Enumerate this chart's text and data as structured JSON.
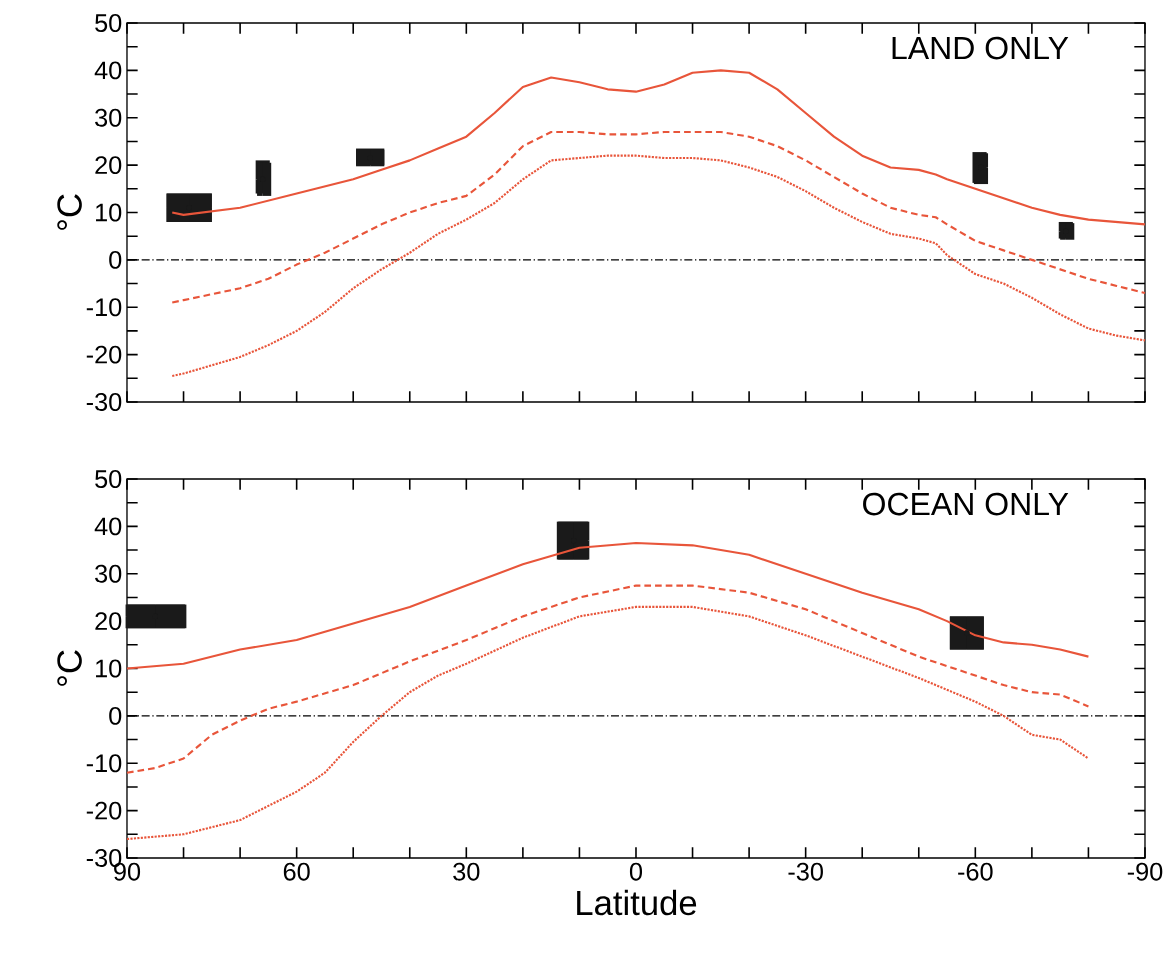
{
  "chart_data": [
    {
      "type": "line",
      "title": "LAND ONLY",
      "ylabel": "°C",
      "tick_labels": "y",
      "xlim": [
        90,
        -90
      ],
      "ylim": [
        -30,
        50
      ],
      "xticks": [
        90,
        {
          "value": 80,
          "label": null
        },
        {
          "value": 70,
          "label": null
        },
        60,
        {
          "value": 50,
          "label": null
        },
        {
          "value": 40,
          "label": null
        },
        30,
        {
          "value": 20,
          "label": null
        },
        {
          "value": 10,
          "label": null
        },
        0,
        {
          "value": -10,
          "label": null
        },
        {
          "value": -20,
          "label": null
        },
        -30,
        {
          "value": -40,
          "label": null
        },
        {
          "value": -50,
          "label": null
        },
        -60,
        {
          "value": -70,
          "label": null
        },
        {
          "value": -80,
          "label": null
        },
        -90
      ],
      "yticks": [
        -30,
        {
          "value": -25,
          "label": null
        },
        -20,
        {
          "value": -15,
          "label": null
        },
        -10,
        {
          "value": -5,
          "label": null
        },
        0,
        {
          "value": 5,
          "label": null
        },
        10,
        {
          "value": 15,
          "label": null
        },
        20,
        {
          "value": 25,
          "label": null
        },
        30,
        {
          "value": 35,
          "label": null
        },
        40,
        {
          "value": 45,
          "label": null
        },
        50
      ],
      "ref_lines": [
        {
          "axis": "y",
          "value": 0,
          "color": "#000000",
          "line_style": "dashed"
        }
      ],
      "series": [
        {
          "type": "line",
          "color": "#e8553a",
          "line_style": "solid",
          "x": [
            82,
            80,
            70,
            60,
            50,
            45,
            40,
            35,
            30,
            25,
            20,
            15,
            10,
            5,
            0,
            -5,
            -10,
            -15,
            -20,
            -25,
            -30,
            -35,
            -40,
            -45,
            -50,
            -53,
            -55,
            -60,
            -65,
            -70,
            -75,
            -80,
            -85,
            -90
          ],
          "values": [
            10,
            9.5,
            11,
            14,
            17,
            19,
            21,
            23.5,
            26,
            31,
            36.5,
            38.5,
            37.5,
            36,
            35.5,
            37,
            39.5,
            40,
            39.5,
            36,
            31,
            26,
            22,
            19.5,
            19,
            18,
            17,
            15,
            13,
            11,
            9.5,
            8.5,
            8,
            7.5
          ]
        },
        {
          "type": "line",
          "color": "#e8553a",
          "line_style": "dashed",
          "x": [
            82,
            80,
            70,
            65,
            60,
            55,
            50,
            45,
            40,
            35,
            30,
            25,
            20,
            15,
            10,
            5,
            0,
            -5,
            -10,
            -15,
            -20,
            -25,
            -30,
            -35,
            -40,
            -45,
            -50,
            -53,
            -55,
            -60,
            -65,
            -70,
            -75,
            -80,
            -85,
            -90
          ],
          "values": [
            -9,
            -8.5,
            -6,
            -4,
            -1,
            1.5,
            4.5,
            7.5,
            10,
            12,
            13.5,
            18,
            24,
            27,
            27,
            26.5,
            26.5,
            27,
            27,
            27,
            26,
            24,
            21,
            17.5,
            14,
            11,
            9.5,
            9,
            7.5,
            4,
            2,
            0,
            -2,
            -4,
            -5.5,
            -7
          ]
        },
        {
          "type": "line",
          "color": "#e8553a",
          "line_style": "dotted",
          "x": [
            82,
            80,
            70,
            65,
            60,
            55,
            50,
            45,
            40,
            35,
            30,
            25,
            20,
            15,
            10,
            5,
            0,
            -5,
            -10,
            -15,
            -20,
            -25,
            -30,
            -35,
            -40,
            -45,
            -50,
            -53,
            -55,
            -60,
            -65,
            -70,
            -75,
            -80,
            -85,
            -90
          ],
          "values": [
            -24.5,
            -24,
            -20.5,
            -18,
            -15,
            -11,
            -6,
            -2,
            1.5,
            5.5,
            8.5,
            12,
            17,
            21,
            21.5,
            22,
            22,
            21.5,
            21.5,
            21,
            19.5,
            17.5,
            14.5,
            11,
            8,
            5.5,
            4.5,
            3.5,
            1,
            -3,
            -5,
            -8,
            -11.5,
            -14.5,
            -16,
            -17
          ]
        },
        {
          "type": "scatter",
          "color": "#1a1a1a",
          "marker": "square",
          "x": [
            79,
            66,
            47,
            -61,
            -76
          ],
          "values": [
            11,
            17,
            21.5,
            19.5,
            6
          ],
          "xerrors": [
            [
              75,
              83
            ],
            [
              64.5,
              67
            ],
            [
              44.5,
              49.5
            ],
            [
              -62,
              -59.5
            ],
            [
              -77.5,
              -75
            ]
          ],
          "errors": [
            [
              8,
              14
            ],
            [
              14,
              21
            ],
            [
              20,
              23.5
            ],
            [
              16,
              22.5
            ],
            [
              4.5,
              8
            ]
          ]
        }
      ]
    },
    {
      "type": "line",
      "title": "OCEAN ONLY",
      "ylabel": "°C",
      "xlabel": "Latitude",
      "xlim": [
        90,
        -90
      ],
      "ylim": [
        -30,
        50
      ],
      "xticks": [
        90,
        {
          "value": 80,
          "label": null
        },
        {
          "value": 70,
          "label": null
        },
        60,
        {
          "value": 50,
          "label": null
        },
        {
          "value": 40,
          "label": null
        },
        30,
        {
          "value": 20,
          "label": null
        },
        {
          "value": 10,
          "label": null
        },
        0,
        {
          "value": -10,
          "label": null
        },
        {
          "value": -20,
          "label": null
        },
        -30,
        {
          "value": -40,
          "label": null
        },
        {
          "value": -50,
          "label": null
        },
        -60,
        {
          "value": -70,
          "label": null
        },
        {
          "value": -80,
          "label": null
        },
        -90
      ],
      "yticks": [
        -30,
        {
          "value": -25,
          "label": null
        },
        -20,
        {
          "value": -15,
          "label": null
        },
        -10,
        {
          "value": -5,
          "label": null
        },
        0,
        {
          "value": 5,
          "label": null
        },
        10,
        {
          "value": 15,
          "label": null
        },
        20,
        {
          "value": 25,
          "label": null
        },
        30,
        {
          "value": 35,
          "label": null
        },
        40,
        {
          "value": 45,
          "label": null
        },
        50
      ],
      "ref_lines": [
        {
          "axis": "y",
          "value": 0,
          "color": "#000000",
          "line_style": "dashed"
        }
      ],
      "series": [
        {
          "type": "line",
          "color": "#e8553a",
          "line_style": "solid",
          "x": [
            90,
            80,
            70,
            60,
            50,
            40,
            30,
            20,
            10,
            0,
            -10,
            -20,
            -30,
            -40,
            -50,
            -55,
            -60,
            -65,
            -70,
            -75,
            -80
          ],
          "values": [
            10,
            11,
            14,
            16,
            19.5,
            23,
            27.5,
            32,
            35.5,
            36.5,
            36,
            34,
            30,
            26,
            22.5,
            20,
            17,
            15.5,
            15,
            14,
            12.5
          ]
        },
        {
          "type": "line",
          "color": "#e8553a",
          "line_style": "dashed",
          "x": [
            90,
            85,
            80,
            75,
            70,
            65,
            60,
            50,
            40,
            30,
            20,
            10,
            0,
            -10,
            -20,
            -30,
            -40,
            -50,
            -60,
            -65,
            -70,
            -75,
            -80
          ],
          "values": [
            -12,
            -11,
            -9,
            -4,
            -1,
            1.5,
            3,
            6.5,
            11.5,
            16,
            21,
            25,
            27.5,
            27.5,
            26,
            22.5,
            17.5,
            12.5,
            8.5,
            6.5,
            5,
            4.5,
            2
          ]
        },
        {
          "type": "line",
          "color": "#e8553a",
          "line_style": "dotted",
          "x": [
            90,
            80,
            70,
            60,
            55,
            50,
            45,
            40,
            35,
            30,
            20,
            10,
            0,
            -10,
            -20,
            -30,
            -40,
            -50,
            -60,
            -65,
            -70,
            -75,
            -80
          ],
          "values": [
            -26,
            -25,
            -22,
            -16,
            -12,
            -5.5,
            0,
            5,
            8.5,
            11,
            16.5,
            21,
            23,
            23,
            21,
            17,
            12.5,
            8,
            3,
            0,
            -4,
            -5,
            -9
          ]
        },
        {
          "type": "scatter",
          "color": "#1a1a1a",
          "marker": "square",
          "x": [
            85,
            11,
            -58.5
          ],
          "values": [
            21,
            37,
            17.5
          ],
          "xerrors": [
            [
              79.5,
              90
            ],
            [
              8.5,
              14
            ],
            [
              -61.5,
              -55.5
            ]
          ],
          "errors": [
            [
              18.5,
              23.5
            ],
            [
              33,
              41
            ],
            [
              14,
              21
            ]
          ]
        }
      ]
    }
  ]
}
